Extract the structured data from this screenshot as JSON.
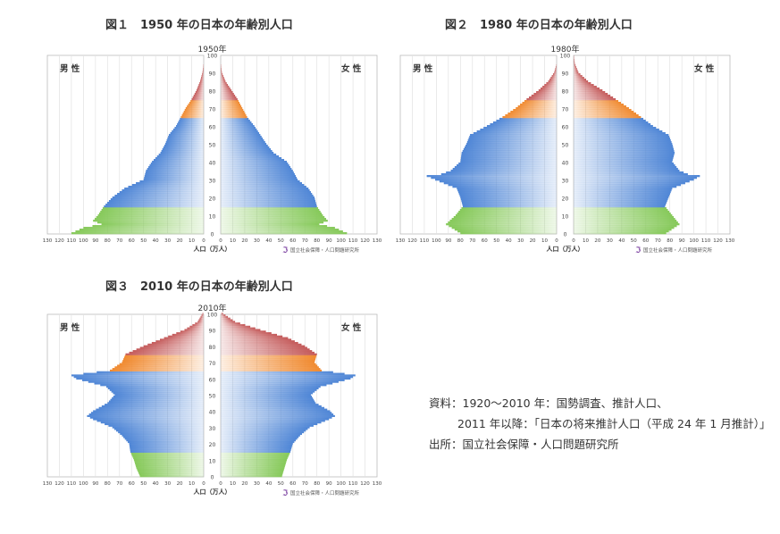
{
  "figures": [
    {
      "title": "図１　1950 年の日本の年齢別人口"
    },
    {
      "title": "図２　1980 年の日本の年齢別人口"
    },
    {
      "title": "図３　2010 年の日本の年齢別人口"
    }
  ],
  "source": {
    "line1": "資料：1920～2010 年：国勢調査、推計人口、",
    "line2": "2011 年以降：「日本の将来推計人口（平成 24 年 1 月推計）」",
    "line3": "出所：国立社会保障・人口問題研究所"
  },
  "colors": {
    "age_0_14": "#86c95a",
    "age_15_64": "#4f86d6",
    "age_65_74": "#f08a30",
    "age_75_plus": "#c45a5a"
  },
  "chart_data": [
    {
      "type": "bar",
      "title": "1950年",
      "orientation": "population-pyramid",
      "male_label": "男 性",
      "female_label": "女 性",
      "xlabel": "人口（万人）",
      "logo_text": "国立社会保障・人口問題研究所",
      "x_ticks": [
        "130",
        "120",
        "110",
        "100",
        "90",
        "80",
        "70",
        "60",
        "50",
        "40",
        "30",
        "20",
        "10",
        "0",
        "0",
        "10",
        "20",
        "30",
        "40",
        "50",
        "60",
        "70",
        "80",
        "90",
        "100",
        "110",
        "120",
        "130"
      ],
      "y_ticks": [
        "0",
        "10",
        "20",
        "30",
        "40",
        "50",
        "60",
        "70",
        "80",
        "90",
        "100"
      ],
      "xlim": [
        0,
        130
      ],
      "ylim": [
        0,
        100
      ],
      "grid": true,
      "age_knots": [
        0,
        3,
        5,
        7,
        10,
        15,
        20,
        25,
        30,
        35,
        40,
        45,
        50,
        55,
        60,
        65,
        70,
        75,
        80,
        85,
        90,
        95,
        100
      ],
      "male": [
        110,
        100,
        85,
        92,
        88,
        83,
        76,
        66,
        50,
        48,
        43,
        36,
        32,
        29,
        23,
        19,
        15,
        10,
        6,
        3,
        1,
        0,
        0
      ],
      "female": [
        105,
        95,
        82,
        89,
        85,
        80,
        78,
        73,
        64,
        60,
        55,
        44,
        38,
        33,
        28,
        22,
        18,
        14,
        9,
        4,
        1,
        0,
        0
      ]
    },
    {
      "type": "bar",
      "title": "1980年",
      "orientation": "population-pyramid",
      "male_label": "男 性",
      "female_label": "女 性",
      "xlabel": "人口（万人）",
      "logo_text": "国立社会保障・人口問題研究所",
      "x_ticks": [
        "130",
        "120",
        "110",
        "100",
        "90",
        "80",
        "70",
        "60",
        "50",
        "40",
        "30",
        "20",
        "10",
        "0",
        "0",
        "10",
        "20",
        "30",
        "40",
        "50",
        "60",
        "70",
        "80",
        "90",
        "100",
        "110",
        "120",
        "130"
      ],
      "y_ticks": [
        "0",
        "10",
        "20",
        "30",
        "40",
        "50",
        "60",
        "70",
        "80",
        "90",
        "100"
      ],
      "xlim": [
        0,
        130
      ],
      "ylim": [
        0,
        100
      ],
      "grid": true,
      "age_knots": [
        0,
        5,
        10,
        15,
        20,
        25,
        30,
        32,
        33,
        35,
        40,
        45,
        50,
        55,
        60,
        65,
        70,
        75,
        80,
        85,
        90,
        95,
        100
      ],
      "male": [
        80,
        92,
        84,
        78,
        80,
        83,
        101,
        108,
        96,
        88,
        80,
        79,
        75,
        72,
        58,
        45,
        34,
        25,
        15,
        7,
        2,
        0,
        0
      ],
      "female": [
        77,
        88,
        82,
        76,
        79,
        82,
        100,
        105,
        95,
        88,
        82,
        84,
        82,
        79,
        66,
        56,
        46,
        35,
        24,
        12,
        4,
        1,
        0
      ]
    },
    {
      "type": "bar",
      "title": "2010年",
      "orientation": "population-pyramid",
      "male_label": "男 性",
      "female_label": "女 性",
      "xlabel": "人口（万人）",
      "logo_text": "国立社会保障・人口問題研究所",
      "x_ticks": [
        "130",
        "120",
        "110",
        "100",
        "90",
        "80",
        "70",
        "60",
        "50",
        "40",
        "30",
        "20",
        "10",
        "0",
        "0",
        "10",
        "20",
        "30",
        "40",
        "50",
        "60",
        "70",
        "80",
        "90",
        "100",
        "110",
        "120",
        "130"
      ],
      "y_ticks": [
        "0",
        "10",
        "20",
        "30",
        "40",
        "50",
        "60",
        "70",
        "80",
        "90",
        "100"
      ],
      "xlim": [
        0,
        130
      ],
      "ylim": [
        0,
        100
      ],
      "grid": true,
      "age_knots": [
        0,
        5,
        10,
        15,
        20,
        25,
        30,
        35,
        37,
        40,
        45,
        50,
        55,
        60,
        62,
        63,
        65,
        70,
        75,
        80,
        85,
        90,
        95,
        100
      ],
      "male": [
        53,
        56,
        58,
        61,
        62,
        68,
        76,
        92,
        97,
        92,
        80,
        74,
        81,
        106,
        110,
        100,
        78,
        68,
        65,
        50,
        33,
        16,
        5,
        1
      ],
      "female": [
        51,
        53,
        55,
        58,
        60,
        66,
        74,
        90,
        95,
        91,
        79,
        75,
        83,
        108,
        112,
        103,
        84,
        78,
        80,
        70,
        56,
        33,
        12,
        2
      ]
    }
  ]
}
